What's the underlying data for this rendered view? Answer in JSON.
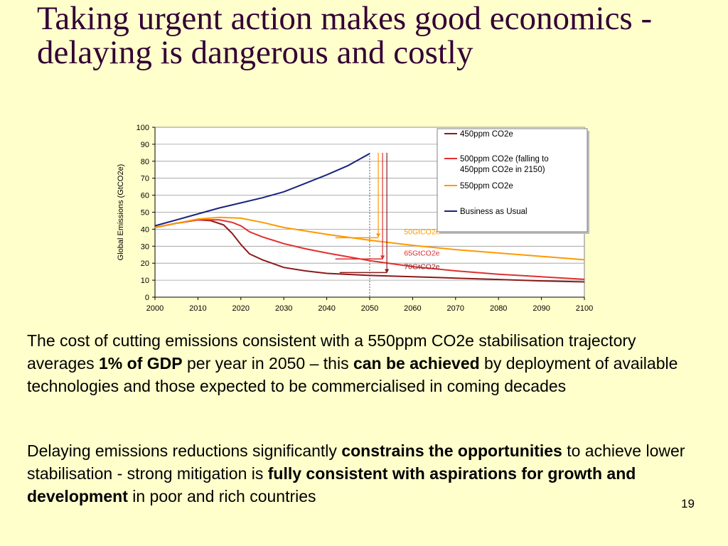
{
  "slide": {
    "title": "Taking urgent action makes good economics - delaying is dangerous and costly",
    "page_number": "19",
    "paragraph1": [
      {
        "text": "The cost of cutting emissions consistent with a 550ppm CO2e stabilisation trajectory averages ",
        "bold": false
      },
      {
        "text": "1% of GDP",
        "bold": true
      },
      {
        "text": " per year in 2050 – this ",
        "bold": false
      },
      {
        "text": "can be achieved",
        "bold": true
      },
      {
        "text": " by deployment of available technologies and those expected to be commercialised in coming decades",
        "bold": false
      }
    ],
    "paragraph2": [
      {
        "text": "Delaying emissions reductions significantly ",
        "bold": false
      },
      {
        "text": "constrains the opportunities",
        "bold": true
      },
      {
        "text": " to achieve lower stabilisation - strong mitigation is ",
        "bold": false
      },
      {
        "text": "fully consistent with aspirations for growth and development",
        "bold": true
      },
      {
        "text": " in poor and rich countries",
        "bold": false
      }
    ]
  },
  "chart_data": {
    "type": "line",
    "title": "",
    "xlabel": "",
    "ylabel": "Global Emissions (GtCO2e)",
    "xlim": [
      2000,
      2100
    ],
    "ylim": [
      0,
      100
    ],
    "xticks": [
      2000,
      2010,
      2020,
      2030,
      2040,
      2050,
      2060,
      2070,
      2080,
      2090,
      2100
    ],
    "yticks": [
      0,
      10,
      20,
      30,
      40,
      50,
      60,
      70,
      80,
      90,
      100
    ],
    "grid": "horizontal",
    "legend_position": "top-right",
    "series": [
      {
        "name": "450ppm CO2e",
        "color": "#8B1A1A",
        "x": [
          2000,
          2005,
          2010,
          2013,
          2016,
          2018,
          2020,
          2022,
          2025,
          2030,
          2035,
          2040,
          2050,
          2060,
          2070,
          2080,
          2090,
          2100
        ],
        "y": [
          41,
          43.5,
          45.5,
          45,
          42.5,
          37.5,
          31,
          25.5,
          22,
          17.5,
          15.5,
          14,
          12.8,
          12,
          11.2,
          10.4,
          9.6,
          9
        ]
      },
      {
        "name": "500ppm CO2e (falling to 450ppm CO2e in 2150)",
        "color": "#E03030",
        "x": [
          2000,
          2005,
          2010,
          2015,
          2018,
          2020,
          2022,
          2025,
          2030,
          2035,
          2040,
          2050,
          2060,
          2070,
          2080,
          2090,
          2100
        ],
        "y": [
          41,
          43.5,
          45.5,
          45.5,
          44,
          42,
          38.5,
          35.5,
          31.5,
          28.5,
          26,
          21.5,
          18,
          15.5,
          13.5,
          12,
          10.5
        ]
      },
      {
        "name": "550ppm CO2e",
        "color": "#FF9900",
        "x": [
          2000,
          2005,
          2010,
          2015,
          2020,
          2025,
          2030,
          2040,
          2050,
          2060,
          2070,
          2080,
          2090,
          2100
        ],
        "y": [
          41,
          43.5,
          46,
          47,
          46.5,
          44,
          41,
          37,
          33.5,
          30.5,
          28,
          26,
          24,
          22
        ]
      },
      {
        "name": "Business as Usual",
        "color": "#1A237E",
        "x": [
          2000,
          2005,
          2010,
          2015,
          2020,
          2025,
          2030,
          2035,
          2040,
          2045,
          2050
        ],
        "y": [
          42,
          45.5,
          49,
          52.5,
          55.5,
          58.5,
          62,
          67,
          72,
          77.5,
          84.5
        ]
      }
    ],
    "annotations": [
      {
        "label": "50GtCO2e",
        "color": "#FF9900",
        "x": 2058,
        "y": 37,
        "arrow_x": 2052,
        "arrow_from": 85,
        "arrow_to": 35,
        "bar_from": 2042,
        "bar_y": 35
      },
      {
        "label": "65GtCO2e",
        "color": "#E03030",
        "x": 2058,
        "y": 24.5,
        "arrow_x": 2053,
        "arrow_from": 85,
        "arrow_to": 22,
        "bar_from": 2042,
        "bar_y": 22.5
      },
      {
        "label": "70GtCO2e",
        "color": "#8B1A1A",
        "x": 2058,
        "y": 16.5,
        "arrow_x": 2054,
        "arrow_from": 85,
        "arrow_to": 14,
        "bar_from": 2043,
        "bar_y": 14.5
      }
    ],
    "reference_line": {
      "x": 2050,
      "style": "dotted"
    }
  }
}
